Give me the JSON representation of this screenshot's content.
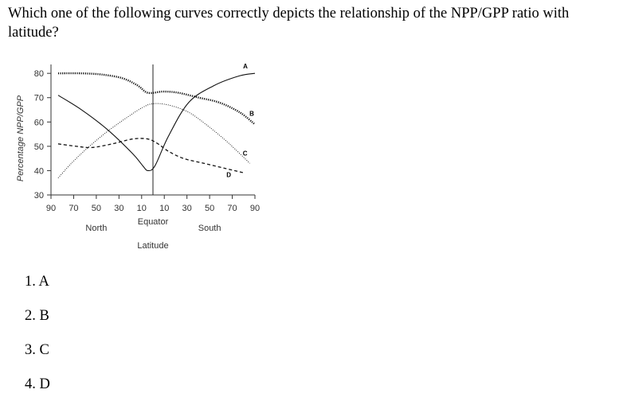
{
  "question": "Which one of the following curves correctly depicts the relationship of the NPP/GPP ratio with latitude?",
  "options": [
    "1. A",
    "2. B",
    "3. C",
    "4. D"
  ],
  "chart_data": {
    "type": "line",
    "ylabel": "Percentage NPP/GPP",
    "yticks": [
      30,
      40,
      50,
      60,
      70,
      80
    ],
    "ylim": [
      30,
      83
    ],
    "xtick_labels": [
      "90",
      "70",
      "50",
      "30",
      "10",
      "10",
      "30",
      "50",
      "70",
      "90"
    ],
    "x_group_labels": [
      "North",
      "Equator",
      "South"
    ],
    "xlabel": "Latitude",
    "x_note": "x positions: 0 = 90°N, 100 = equator, 200 = 90°S",
    "xlim": [
      0,
      200
    ],
    "equator_x": 100,
    "series": [
      {
        "name": "A",
        "style": "solid",
        "x": [
          7,
          30,
          55,
          80,
          90,
          95,
          102,
          115,
          135,
          160,
          185,
          200
        ],
        "y": [
          71,
          65,
          57,
          47,
          42,
          40,
          42,
          54,
          68,
          75,
          79,
          80
        ]
      },
      {
        "name": "B",
        "style": "dotted-heavy",
        "x": [
          7,
          30,
          50,
          70,
          85,
          95,
          110,
          125,
          145,
          165,
          185,
          200
        ],
        "y": [
          80,
          80,
          79.5,
          78,
          75,
          72,
          72.5,
          72,
          70,
          68,
          64,
          59
        ]
      },
      {
        "name": "C",
        "style": "dotted-light",
        "x": [
          7,
          20,
          35,
          55,
          75,
          90,
          100,
          115,
          135,
          155,
          175,
          195
        ],
        "y": [
          37,
          43,
          49,
          56,
          62,
          66,
          67.5,
          67,
          64,
          58,
          51,
          43
        ]
      },
      {
        "name": "D",
        "style": "dashed",
        "x": [
          7,
          25,
          40,
          60,
          80,
          95,
          105,
          115,
          130,
          150,
          170,
          190
        ],
        "y": [
          51,
          50,
          49.5,
          51,
          53,
          53,
          51,
          48,
          45,
          43,
          41,
          39
        ]
      }
    ]
  }
}
